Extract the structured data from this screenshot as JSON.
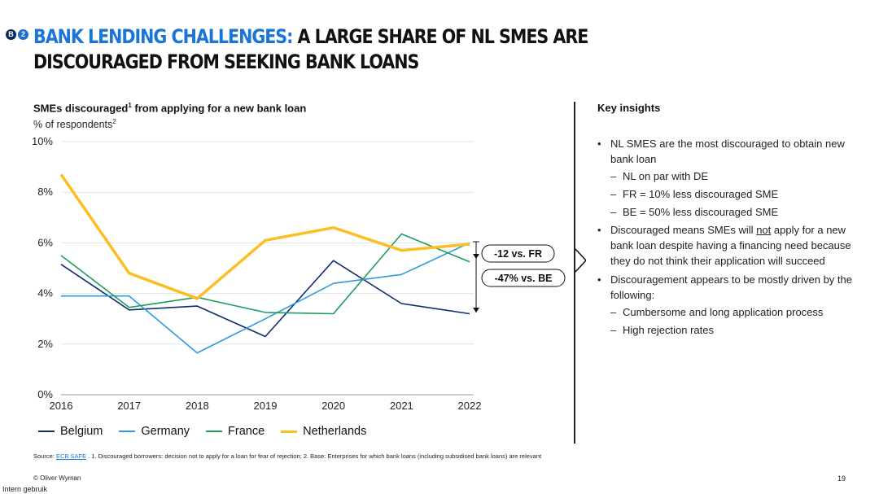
{
  "header": {
    "badge_1": "B",
    "badge_2": "2",
    "title_highlight": "BANK LENDING CHALLENGES:",
    "title_rest": " A LARGE SHARE OF NL SMES ARE DISCOURAGED FROM SEEKING BANK LOANS"
  },
  "chart_header": {
    "title_main": "SMEs discouraged",
    "title_sup": "1",
    "title_end": " from applying for a new bank loan",
    "subtitle_main": "% of respondents",
    "subtitle_sup": "2"
  },
  "chart_data": {
    "type": "line",
    "x": [
      "2016",
      "2017",
      "2018",
      "2019",
      "2020",
      "2021",
      "2022"
    ],
    "ylim": [
      0,
      10
    ],
    "yticks": [
      "0%",
      "2%",
      "4%",
      "6%",
      "8%",
      "10%"
    ],
    "series": [
      {
        "name": "Belgium",
        "color": "#0d2f6e",
        "values": [
          5.15,
          3.35,
          3.5,
          2.3,
          5.3,
          3.6,
          3.2
        ]
      },
      {
        "name": "Germany",
        "color": "#2f9ae0",
        "values": [
          3.9,
          3.9,
          1.65,
          3.0,
          4.4,
          4.75,
          6.0
        ]
      },
      {
        "name": "France",
        "color": "#1e9e5e",
        "values": [
          5.5,
          3.45,
          3.85,
          3.25,
          3.2,
          6.35,
          5.25
        ]
      },
      {
        "name": "Netherlands",
        "color": "#fbbf24",
        "values": [
          8.7,
          4.8,
          3.8,
          6.1,
          6.6,
          5.7,
          5.95
        ]
      }
    ],
    "annotations": [
      "-12 vs. FR",
      "-47% vs. BE"
    ],
    "legend_position": "bottom",
    "grid": "horizontal"
  },
  "insights": {
    "title": "Key insights",
    "b1": "NL SMES are the most discouraged to obtain new bank loan",
    "b1_s1": "NL on par with DE",
    "b1_s2": "FR = 10% less discouraged SME",
    "b1_s3": "BE = 50% less discouraged SME",
    "b2_pre": "Discouraged means SMEs will ",
    "b2_u": "not",
    "b2_post": " apply for a new bank loan despite having a financing need because they do not think their application will succeed",
    "b3": "Discouragement appears to be mostly driven by the following:",
    "b3_s1": "Cumbersome and long application process",
    "b3_s2": "High rejection rates"
  },
  "footer": {
    "source_label": "Source: ",
    "source_link": "ECB SAFE",
    "source_text": " . 1. Discouraged borrowers: decision not to apply for a loan for fear of rejection; 2. Base: Enterprises for which bank loans (including subsidised bank loans) are relevant",
    "copyright": "© Oliver Wyman",
    "page": "19",
    "classification": "Intern gebruik"
  }
}
